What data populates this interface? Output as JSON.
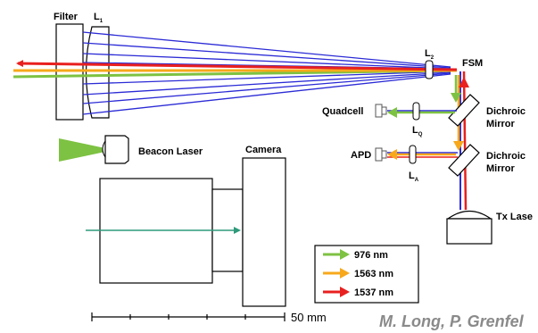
{
  "labels": {
    "filter": "Filter",
    "lens1": "L",
    "lens1_sub": "1",
    "lens2": "L",
    "lens2_sub": "2",
    "fsm": "FSM",
    "quadcell": "Quadcell",
    "lens_q": "L",
    "lens_q_sub": "Q",
    "dichroic1_line1": "Dichroic",
    "dichroic1_line2": "Mirror",
    "apd": "APD",
    "lens_a": "L",
    "lens_a_sub": "A",
    "dichroic2_line1": "Dichroic",
    "dichroic2_line2": "Mirror",
    "beacon_laser": "Beacon Laser",
    "camera": "Camera",
    "tx_laser": "Tx Lase"
  },
  "legend": {
    "items": [
      {
        "label": "976 nm",
        "color": "#7dc242"
      },
      {
        "label": "1563 nm",
        "color": "#f7a81b"
      },
      {
        "label": "1537 nm",
        "color": "#e8201f"
      }
    ]
  },
  "scale_bar": {
    "label": "50 mm"
  },
  "credit": "M. Long, P. Grenfel",
  "colors": {
    "blue_beam": "#2b2bd6",
    "green": "#7dc242",
    "orange": "#f7a81b",
    "red": "#e8201f"
  }
}
